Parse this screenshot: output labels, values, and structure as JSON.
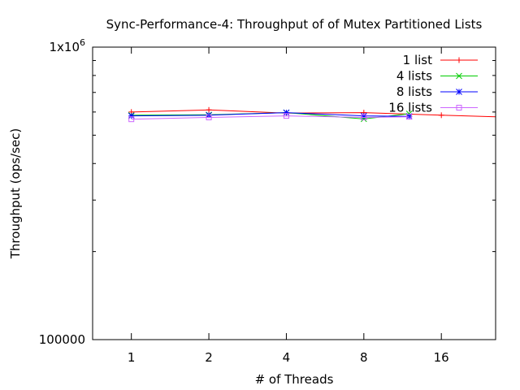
{
  "chart_data": {
    "type": "line",
    "title": "Sync-Performance-4: Throughput of of Mutex Partitioned Lists",
    "xlabel": "# of Threads",
    "ylabel": "Throughput (ops/sec)",
    "x_scale": "log2",
    "y_scale": "log10",
    "xlim": [
      0.7071,
      26.0
    ],
    "ylim": [
      100000,
      1000000
    ],
    "x_ticks": [
      1,
      2,
      4,
      8,
      16
    ],
    "x_tick_labels": [
      "1",
      "2",
      "4",
      "8",
      "16"
    ],
    "y_tick_labels": [
      {
        "value": 100000,
        "label": "100000"
      },
      {
        "value": 1000000,
        "label": "1x10^6",
        "base": "1x10",
        "exp": "6"
      }
    ],
    "grid": false,
    "legend_position": "top-right",
    "series": [
      {
        "name": "1 list",
        "color": "#ff0000",
        "marker": "plus",
        "points": [
          [
            1,
            600000
          ],
          [
            2,
            610000
          ],
          [
            4,
            595000
          ],
          [
            8,
            597000
          ],
          [
            16,
            585000
          ],
          [
            32,
            575000
          ]
        ]
      },
      {
        "name": "4 lists",
        "color": "#00cc00",
        "marker": "cross",
        "points": [
          [
            1,
            585000
          ],
          [
            2,
            587000
          ],
          [
            4,
            597000
          ],
          [
            8,
            568000
          ],
          [
            12,
            592000
          ]
        ]
      },
      {
        "name": "8 lists",
        "color": "#0000ff",
        "marker": "star",
        "points": [
          [
            1,
            582000
          ],
          [
            2,
            585000
          ],
          [
            4,
            597000
          ],
          [
            8,
            582000
          ],
          [
            12,
            580000
          ]
        ]
      },
      {
        "name": "16 lists",
        "color": "#cc66ff",
        "marker": "box",
        "points": [
          [
            1,
            567000
          ],
          [
            2,
            575000
          ],
          [
            4,
            582000
          ],
          [
            8,
            575000
          ],
          [
            12,
            578000
          ]
        ]
      }
    ]
  }
}
